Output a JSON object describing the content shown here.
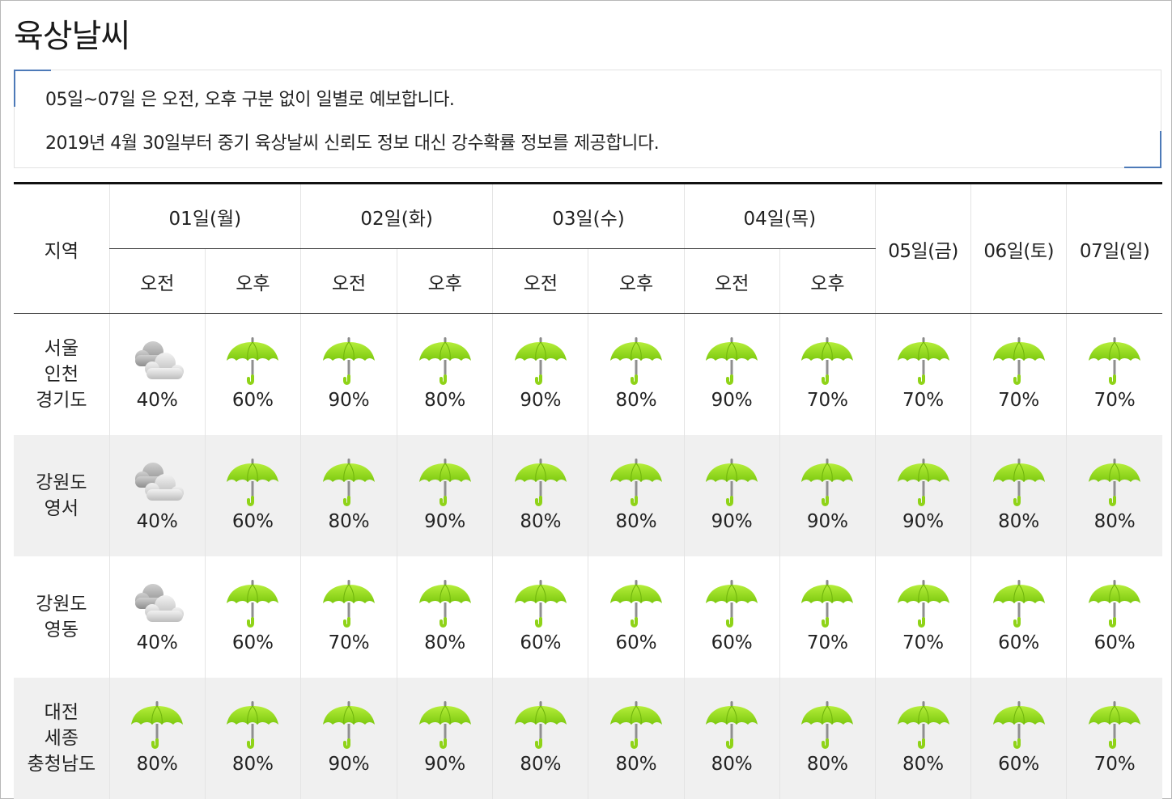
{
  "page_title": "육상날씨",
  "notice": [
    "05일~07일 은 오전, 오후 구분 없이 일별로 예보합니다.",
    "2019년 4월 30일부터 중기 육상날씨 신뢰도 정보 대신 강수확률 정보를 제공합니다."
  ],
  "table": {
    "region_header": "지역",
    "split_days": [
      "01일(월)",
      "02일(화)",
      "03일(수)",
      "04일(목)"
    ],
    "am_label": "오전",
    "pm_label": "오후",
    "single_days": [
      "05일(금)",
      "06일(토)",
      "07일(일)"
    ],
    "icon_types": {
      "cloud": "cloudy-icon",
      "umbrella": "umbrella-rain-icon"
    },
    "colors": {
      "umbrella_green": "#8fd318",
      "cloud_gray": "#b8b8b8"
    },
    "rows": [
      {
        "region": [
          "서울",
          "인천",
          "경기도"
        ],
        "cells": [
          {
            "icon": "cloud",
            "pct": "40%"
          },
          {
            "icon": "umbrella",
            "pct": "60%"
          },
          {
            "icon": "umbrella",
            "pct": "90%"
          },
          {
            "icon": "umbrella",
            "pct": "80%"
          },
          {
            "icon": "umbrella",
            "pct": "90%"
          },
          {
            "icon": "umbrella",
            "pct": "80%"
          },
          {
            "icon": "umbrella",
            "pct": "90%"
          },
          {
            "icon": "umbrella",
            "pct": "70%"
          },
          {
            "icon": "umbrella",
            "pct": "70%"
          },
          {
            "icon": "umbrella",
            "pct": "70%"
          },
          {
            "icon": "umbrella",
            "pct": "70%"
          }
        ]
      },
      {
        "region": [
          "강원도",
          "영서"
        ],
        "cells": [
          {
            "icon": "cloud",
            "pct": "40%"
          },
          {
            "icon": "umbrella",
            "pct": "60%"
          },
          {
            "icon": "umbrella",
            "pct": "80%"
          },
          {
            "icon": "umbrella",
            "pct": "90%"
          },
          {
            "icon": "umbrella",
            "pct": "80%"
          },
          {
            "icon": "umbrella",
            "pct": "80%"
          },
          {
            "icon": "umbrella",
            "pct": "90%"
          },
          {
            "icon": "umbrella",
            "pct": "90%"
          },
          {
            "icon": "umbrella",
            "pct": "90%"
          },
          {
            "icon": "umbrella",
            "pct": "80%"
          },
          {
            "icon": "umbrella",
            "pct": "80%"
          }
        ]
      },
      {
        "region": [
          "강원도",
          "영동"
        ],
        "cells": [
          {
            "icon": "cloud",
            "pct": "40%"
          },
          {
            "icon": "umbrella",
            "pct": "60%"
          },
          {
            "icon": "umbrella",
            "pct": "70%"
          },
          {
            "icon": "umbrella",
            "pct": "80%"
          },
          {
            "icon": "umbrella",
            "pct": "60%"
          },
          {
            "icon": "umbrella",
            "pct": "60%"
          },
          {
            "icon": "umbrella",
            "pct": "60%"
          },
          {
            "icon": "umbrella",
            "pct": "70%"
          },
          {
            "icon": "umbrella",
            "pct": "70%"
          },
          {
            "icon": "umbrella",
            "pct": "60%"
          },
          {
            "icon": "umbrella",
            "pct": "60%"
          }
        ]
      },
      {
        "region": [
          "대전",
          "세종",
          "충청남도"
        ],
        "cells": [
          {
            "icon": "umbrella",
            "pct": "80%"
          },
          {
            "icon": "umbrella",
            "pct": "80%"
          },
          {
            "icon": "umbrella",
            "pct": "90%"
          },
          {
            "icon": "umbrella",
            "pct": "90%"
          },
          {
            "icon": "umbrella",
            "pct": "80%"
          },
          {
            "icon": "umbrella",
            "pct": "80%"
          },
          {
            "icon": "umbrella",
            "pct": "80%"
          },
          {
            "icon": "umbrella",
            "pct": "80%"
          },
          {
            "icon": "umbrella",
            "pct": "80%"
          },
          {
            "icon": "umbrella",
            "pct": "60%"
          },
          {
            "icon": "umbrella",
            "pct": "70%"
          }
        ]
      }
    ]
  }
}
